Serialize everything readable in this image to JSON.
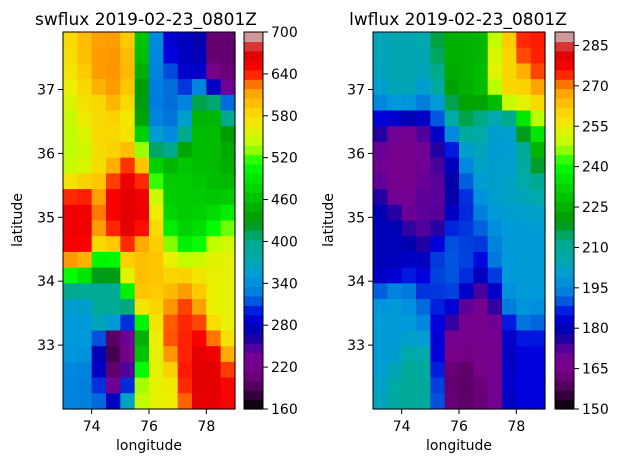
{
  "chart_data": [
    {
      "type": "heatmap",
      "title": "swflux 2019-02-23_0801Z",
      "xlabel": "longitude",
      "ylabel": "latitude",
      "xlim": [
        73.0,
        79.0
      ],
      "ylim": [
        32.0,
        37.9
      ],
      "xticks": [
        74,
        76,
        78
      ],
      "xtick_labels": [
        "74",
        "76",
        "78"
      ],
      "yticks": [
        33,
        34,
        35,
        36,
        37
      ],
      "ytick_labels": [
        "33",
        "34",
        "35",
        "36",
        "37"
      ],
      "colorbar": {
        "min": 160,
        "max": 700,
        "ticks": [
          160,
          220,
          280,
          340,
          400,
          460,
          520,
          580,
          640,
          700
        ],
        "tick_labels": [
          "160",
          "220",
          "280",
          "340",
          "400",
          "460",
          "520",
          "580",
          "640",
          "700"
        ]
      },
      "grid_shape": [
        24,
        12
      ],
      "control_points": [
        {
          "x": 75.3,
          "y": 35.1,
          "v": 670
        },
        {
          "x": 73.5,
          "y": 34.9,
          "v": 660
        },
        {
          "x": 77.9,
          "y": 32.6,
          "v": 670
        },
        {
          "x": 77.2,
          "y": 33.1,
          "v": 640
        },
        {
          "x": 74.6,
          "y": 37.3,
          "v": 620
        },
        {
          "x": 75.8,
          "y": 34.1,
          "v": 600
        },
        {
          "x": 74.2,
          "y": 36.5,
          "v": 580
        },
        {
          "x": 76.3,
          "y": 32.3,
          "v": 560
        },
        {
          "x": 78.6,
          "y": 33.7,
          "v": 560
        },
        {
          "x": 73.4,
          "y": 36.1,
          "v": 540
        },
        {
          "x": 77.2,
          "y": 35.4,
          "v": 470
        },
        {
          "x": 78.0,
          "y": 36.3,
          "v": 460
        },
        {
          "x": 74.6,
          "y": 33.5,
          "v": 400
        },
        {
          "x": 73.5,
          "y": 33.2,
          "v": 350
        },
        {
          "x": 73.6,
          "y": 32.3,
          "v": 330
        },
        {
          "x": 76.7,
          "y": 36.8,
          "v": 320
        },
        {
          "x": 77.3,
          "y": 37.6,
          "v": 280
        },
        {
          "x": 78.5,
          "y": 37.6,
          "v": 200
        },
        {
          "x": 74.8,
          "y": 33.0,
          "v": 180
        }
      ],
      "colormap": "nipy_spectral"
    },
    {
      "type": "heatmap",
      "title": "lwflux 2019-02-23_0801Z",
      "xlabel": "longitude",
      "ylabel": "latitude",
      "xlim": [
        73.0,
        79.0
      ],
      "ylim": [
        32.0,
        37.9
      ],
      "xticks": [
        74,
        76,
        78
      ],
      "xtick_labels": [
        "74",
        "76",
        "78"
      ],
      "yticks": [
        33,
        34,
        35,
        36,
        37
      ],
      "ytick_labels": [
        "33",
        "34",
        "35",
        "36",
        "37"
      ],
      "colorbar": {
        "min": 150,
        "max": 290,
        "ticks": [
          150,
          165,
          180,
          195,
          210,
          225,
          240,
          255,
          270,
          285
        ],
        "tick_labels": [
          "150",
          "165",
          "180",
          "195",
          "210",
          "225",
          "240",
          "255",
          "270",
          "285"
        ]
      },
      "grid_shape": [
        24,
        12
      ],
      "control_points": [
        {
          "x": 78.5,
          "y": 37.7,
          "v": 275
        },
        {
          "x": 77.8,
          "y": 37.2,
          "v": 260
        },
        {
          "x": 76.3,
          "y": 37.6,
          "v": 225
        },
        {
          "x": 74.0,
          "y": 37.4,
          "v": 205
        },
        {
          "x": 77.5,
          "y": 36.2,
          "v": 200
        },
        {
          "x": 75.0,
          "y": 35.2,
          "v": 172
        },
        {
          "x": 74.1,
          "y": 35.8,
          "v": 165
        },
        {
          "x": 73.4,
          "y": 34.5,
          "v": 180
        },
        {
          "x": 73.6,
          "y": 33.3,
          "v": 200
        },
        {
          "x": 76.6,
          "y": 33.0,
          "v": 165
        },
        {
          "x": 76.2,
          "y": 32.4,
          "v": 160
        },
        {
          "x": 78.3,
          "y": 34.2,
          "v": 200
        },
        {
          "x": 78.5,
          "y": 32.5,
          "v": 185
        },
        {
          "x": 75.7,
          "y": 34.3,
          "v": 190
        },
        {
          "x": 74.4,
          "y": 32.3,
          "v": 210
        }
      ],
      "colormap": "nipy_spectral"
    }
  ]
}
